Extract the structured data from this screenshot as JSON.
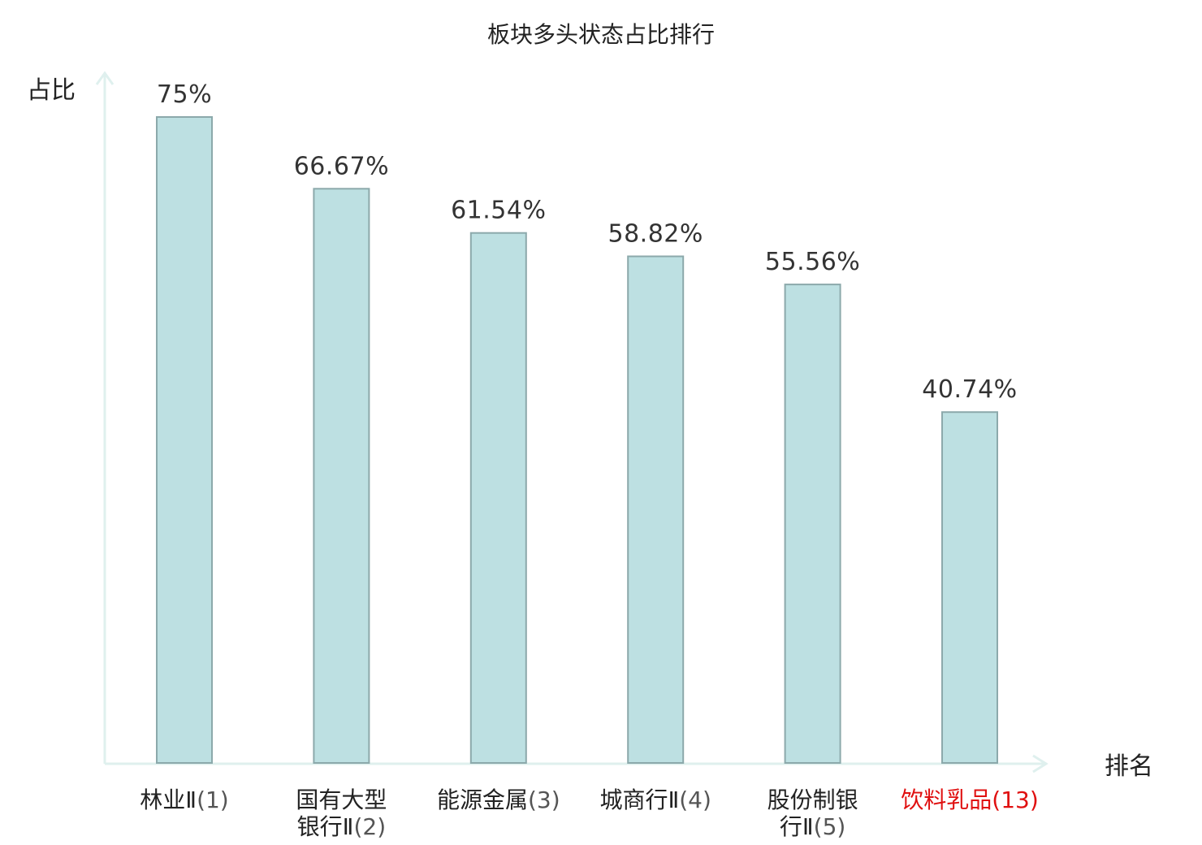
{
  "chart_data": {
    "type": "bar",
    "title": "板块多头状态占比排行",
    "ylabel": "占比",
    "xlabel": "排名",
    "ylim": [
      0,
      80
    ],
    "grid": false,
    "categories": [
      {
        "lines": [
          {
            "name": "林业Ⅱ",
            "rank": "(1)"
          }
        ],
        "highlight": false
      },
      {
        "lines": [
          {
            "name": "国有大型",
            "rank": ""
          },
          {
            "name": "银行Ⅱ",
            "rank": "(2)"
          }
        ],
        "highlight": false
      },
      {
        "lines": [
          {
            "name": "能源金属",
            "rank": "(3)"
          }
        ],
        "highlight": false
      },
      {
        "lines": [
          {
            "name": "城商行Ⅱ",
            "rank": "(4)"
          }
        ],
        "highlight": false
      },
      {
        "lines": [
          {
            "name": "股份制银",
            "rank": ""
          },
          {
            "name": "行Ⅱ",
            "rank": "(5)"
          }
        ],
        "highlight": false
      },
      {
        "lines": [
          {
            "name": "饮料乳品",
            "rank": "(13)"
          }
        ],
        "highlight": true
      }
    ],
    "values": [
      75,
      66.67,
      61.54,
      58.82,
      55.56,
      40.74
    ],
    "value_labels": [
      "75%",
      "66.67%",
      "61.54%",
      "58.82%",
      "55.56%",
      "40.74%"
    ],
    "colors": {
      "bar_fill": "#bde0e2",
      "bar_stroke": "#8ca9ab",
      "axis": "#dff0ee",
      "highlight_text": "#e01010"
    }
  }
}
